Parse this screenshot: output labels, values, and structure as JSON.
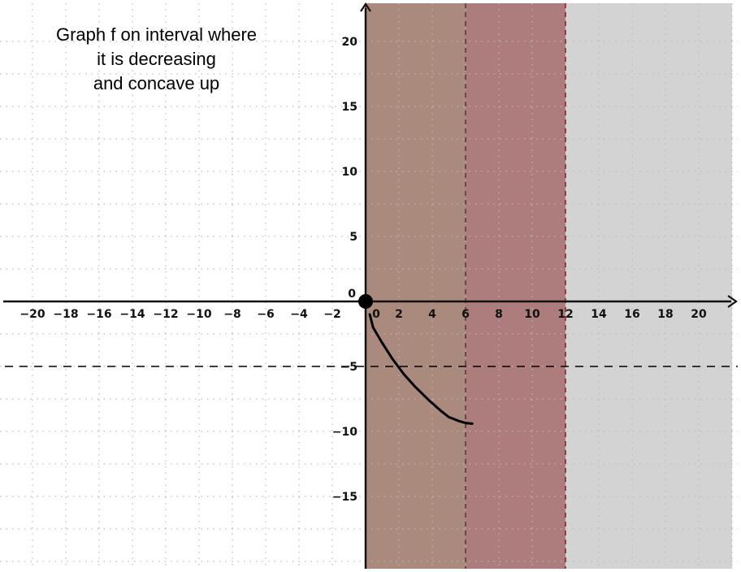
{
  "instruction": {
    "line1": "Graph f on interval where",
    "line2": "it is decreasing",
    "line3": "and concave up"
  },
  "chart_data": {
    "type": "line",
    "title": "",
    "xlabel": "",
    "ylabel": "",
    "xlim": [
      -22,
      22
    ],
    "ylim": [
      -20.5,
      22.7
    ],
    "grid": true,
    "x_ticks": [
      "-20",
      "-18",
      "-16",
      "-14",
      "-12",
      "-10",
      "-8",
      "-6",
      "-4",
      "-2",
      "0",
      "2",
      "4",
      "6",
      "8",
      "10",
      "12",
      "14",
      "16",
      "18",
      "20"
    ],
    "y_ticks": [
      "20",
      "15",
      "10",
      "5",
      "0",
      "-5",
      "-10",
      "-15"
    ],
    "shaded_regions": [
      {
        "x": [
          0,
          6
        ],
        "color": "#a98a7c"
      },
      {
        "x": [
          6,
          12
        ],
        "color": "#ad7d7e"
      },
      {
        "x": [
          12,
          22
        ],
        "color": "#d3d3d3"
      }
    ],
    "asymptotes": [
      {
        "type": "horizontal",
        "value": -5
      },
      {
        "type": "vertical",
        "value": 0
      },
      {
        "type": "vertical",
        "value": 6
      },
      {
        "type": "vertical",
        "value": 12
      }
    ],
    "points": [
      {
        "x": 0,
        "y": 0,
        "filled": true
      }
    ],
    "series": [
      {
        "x": [
          0.25,
          0.45,
          1.0,
          1.6,
          2.3,
          3.0,
          3.8,
          4.5,
          5.0,
          5.6,
          6.0,
          6.4
        ],
        "y": [
          -1.0,
          -2.0,
          -3.2,
          -4.4,
          -5.6,
          -6.6,
          -7.6,
          -8.4,
          -8.9,
          -9.2,
          -9.35,
          -9.4
        ]
      }
    ],
    "colors": {
      "axis": "#111111",
      "grid": "#bbbbbb",
      "curve": "#000000",
      "dashed_dark": "#4a3a34",
      "dashed_red": "#8b1a1a"
    }
  }
}
